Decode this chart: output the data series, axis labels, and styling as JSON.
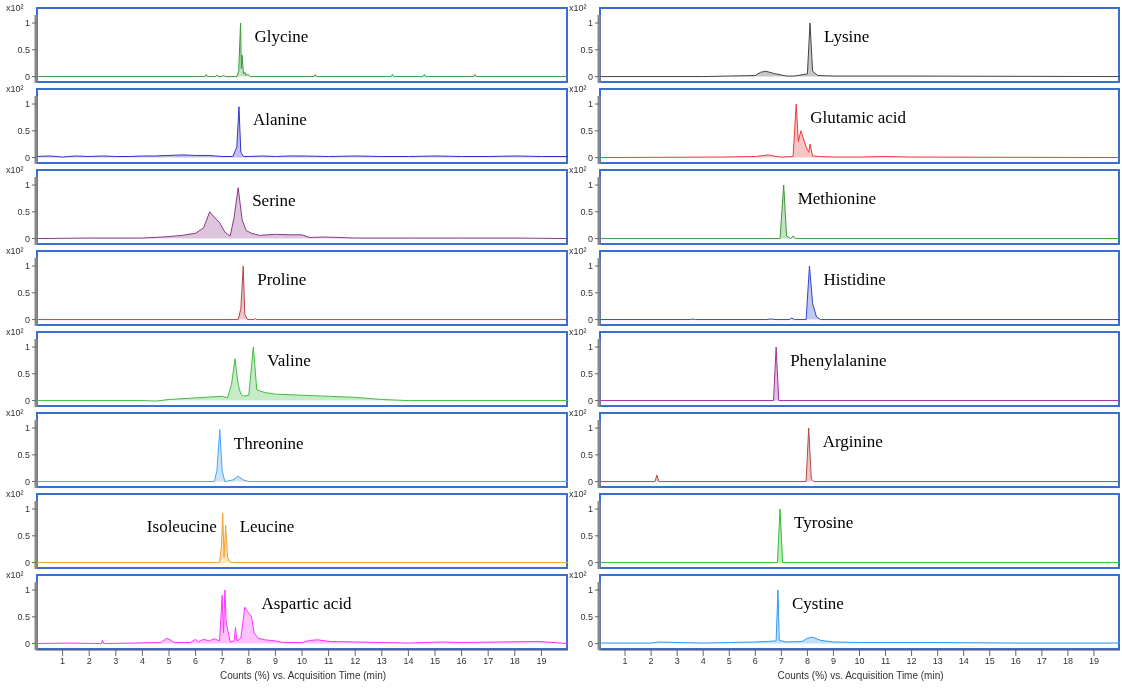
{
  "chart_data": [
    {
      "type": "area",
      "ylabel": "x10²",
      "xlim": [
        0,
        20
      ],
      "ylim": [
        -0.12,
        1.15
      ],
      "yticks": [
        0,
        0.5,
        1
      ],
      "tick_labels": "y",
      "color": "#3a9a3a",
      "annotations": [
        "Glycine"
      ],
      "x": [
        0,
        6.35,
        6.4,
        6.45,
        6.75,
        6.8,
        6.85,
        7.0,
        7.05,
        7.1,
        7.55,
        7.62,
        7.69,
        7.72,
        7.75,
        7.8,
        7.85,
        7.9,
        7.95,
        8.05,
        10.45,
        10.5,
        10.55,
        13.35,
        13.4,
        13.45,
        14.55,
        14.6,
        14.65,
        16.45,
        16.5,
        16.55,
        20
      ],
      "values": [
        0,
        0,
        0.04,
        0,
        0,
        0.03,
        0,
        0,
        0.03,
        0,
        0,
        0.1,
        1.0,
        0.15,
        0.4,
        0.05,
        0.08,
        0.02,
        0.05,
        0,
        0,
        0.04,
        0,
        0,
        0.04,
        0,
        0,
        0.04,
        0,
        0,
        0.04,
        0,
        0
      ]
    },
    {
      "type": "area",
      "ylabel": "x10²",
      "xlim": [
        0,
        20
      ],
      "ylim": [
        -0.12,
        1.15
      ],
      "yticks": [
        0,
        0.5,
        1
      ],
      "tick_labels": "y",
      "color": "#3333cc",
      "annotations": [
        "Alanine"
      ],
      "x": [
        0,
        0.5,
        1,
        1.5,
        2,
        2.5,
        3,
        3.5,
        4,
        4.5,
        5,
        5.5,
        6,
        6.5,
        7,
        7.4,
        7.55,
        7.63,
        7.7,
        7.8,
        8,
        8.5,
        9,
        9.5,
        10,
        11,
        12,
        13,
        14,
        15,
        16,
        17,
        18,
        19,
        20
      ],
      "values": [
        0.02,
        0.03,
        0.01,
        0.03,
        0.02,
        0.03,
        0.02,
        0.02,
        0.03,
        0.03,
        0.04,
        0.05,
        0.04,
        0.04,
        0.02,
        0.02,
        0.2,
        0.95,
        0.1,
        0.02,
        0.02,
        0.03,
        0.02,
        0.03,
        0.03,
        0.02,
        0.03,
        0.02,
        0.02,
        0.03,
        0.02,
        0.02,
        0.03,
        0.02,
        0.02
      ]
    },
    {
      "type": "area",
      "ylabel": "x10²",
      "xlim": [
        0,
        20
      ],
      "ylim": [
        -0.12,
        1.15
      ],
      "yticks": [
        0,
        0.5,
        1
      ],
      "tick_labels": "y",
      "color": "#8b3a8b",
      "annotations": [
        "Serine"
      ],
      "x": [
        0,
        2,
        4,
        4.8,
        5.5,
        6,
        6.3,
        6.53,
        6.7,
        6.9,
        7.1,
        7.3,
        7.45,
        7.6,
        7.75,
        7.9,
        8.1,
        8.4,
        9,
        9.5,
        10,
        10.3,
        10.8,
        12,
        14,
        16,
        18,
        20
      ],
      "values": [
        0,
        0.01,
        0.01,
        0.03,
        0.06,
        0.1,
        0.2,
        0.5,
        0.4,
        0.3,
        0.12,
        0.05,
        0.4,
        0.95,
        0.35,
        0.15,
        0.1,
        0.06,
        0.08,
        0.07,
        0.07,
        0.02,
        0.03,
        0.01,
        0.01,
        0.01,
        0.01,
        0
      ]
    },
    {
      "type": "area",
      "ylabel": "x10²",
      "xlim": [
        0,
        20
      ],
      "ylim": [
        -0.12,
        1.15
      ],
      "yticks": [
        0,
        0.5,
        1
      ],
      "tick_labels": "y",
      "color": "#b54848",
      "annotations": [
        "Proline"
      ],
      "x": [
        0,
        7.6,
        7.7,
        7.79,
        7.85,
        7.95,
        8.2,
        8.25,
        8.3,
        20
      ],
      "values": [
        0,
        0,
        0.2,
        1.0,
        0.1,
        0,
        0,
        0.02,
        0,
        0
      ]
    },
    {
      "type": "area",
      "ylabel": "x10²",
      "xlim": [
        0,
        20
      ],
      "ylim": [
        -0.12,
        1.15
      ],
      "yticks": [
        0,
        0.5,
        1
      ],
      "tick_labels": "y",
      "color": "#44bb44",
      "annotations": [
        "Valine"
      ],
      "x": [
        0,
        2,
        4,
        4.5,
        5,
        6,
        7,
        7.2,
        7.35,
        7.48,
        7.6,
        7.7,
        7.8,
        8.0,
        8.17,
        8.3,
        8.6,
        9,
        10,
        11,
        12,
        13,
        14,
        16,
        20
      ],
      "values": [
        0,
        0,
        0,
        -0.01,
        0.02,
        0.05,
        0.08,
        0.05,
        0.3,
        0.78,
        0.3,
        0.12,
        0.08,
        0.1,
        1.0,
        0.2,
        0.15,
        0.12,
        0.1,
        0.08,
        0.06,
        0.02,
        0,
        0,
        0
      ]
    },
    {
      "type": "area",
      "ylabel": "x10²",
      "xlim": [
        0,
        20
      ],
      "ylim": [
        -0.12,
        1.15
      ],
      "yticks": [
        0,
        0.5,
        1
      ],
      "tick_labels": "y",
      "color": "#4da3f0",
      "annotations": [
        "Threonine"
      ],
      "x": [
        0,
        6.7,
        6.8,
        6.91,
        7.0,
        7.1,
        7.4,
        7.6,
        7.8,
        8.0,
        20
      ],
      "values": [
        0,
        0,
        0.2,
        0.97,
        0.2,
        0,
        0.03,
        0.1,
        0.03,
        0,
        0
      ]
    },
    {
      "type": "area",
      "ylabel": "x10²",
      "xlim": [
        0,
        20
      ],
      "ylim": [
        -0.12,
        1.15
      ],
      "yticks": [
        0,
        0.5,
        1
      ],
      "tick_labels": "y",
      "color": "#f5a030",
      "annotations": [
        "Isoleucine",
        "Leucine"
      ],
      "x": [
        0,
        6.9,
        6.97,
        7.02,
        7.07,
        7.13,
        7.2,
        7.3,
        20
      ],
      "values": [
        0,
        0,
        0.3,
        0.92,
        0.1,
        0.7,
        0.1,
        0,
        0
      ]
    },
    {
      "type": "area",
      "ylabel": "x10²",
      "xlabel": "Counts (%) vs. Acquisition Time (min)",
      "xlim": [
        0,
        20
      ],
      "xticks": [
        1,
        2,
        3,
        4,
        5,
        6,
        7,
        8,
        9,
        10,
        11,
        12,
        13,
        14,
        15,
        16,
        17,
        18,
        19
      ],
      "ylim": [
        -0.12,
        1.15
      ],
      "yticks": [
        0,
        0.5,
        1
      ],
      "color": "#ff33ff",
      "annotations": [
        "Aspartic acid"
      ],
      "x": [
        0,
        1.2,
        2.45,
        2.5,
        2.55,
        4.7,
        4.9,
        5.0,
        5.2,
        5.8,
        6.0,
        6.1,
        6.3,
        6.5,
        6.7,
        6.9,
        7.0,
        7.05,
        7.1,
        7.15,
        7.3,
        7.45,
        7.5,
        7.55,
        7.7,
        7.85,
        7.95,
        8.1,
        8.2,
        8.35,
        8.6,
        9.0,
        9.3,
        10.0,
        10.3,
        10.6,
        11.0,
        12.0,
        13.0,
        14,
        15.3,
        16,
        18.9,
        20
      ],
      "values": [
        0,
        0.01,
        0,
        0.06,
        0,
        0.02,
        0.1,
        0.08,
        0.02,
        0.02,
        0.08,
        0.03,
        0.08,
        0.05,
        0.09,
        0.05,
        0.9,
        0.2,
        1.0,
        0.4,
        0.03,
        0.05,
        0.3,
        0.05,
        0.1,
        0.68,
        0.6,
        0.5,
        0.2,
        0.1,
        0.07,
        0.05,
        0.02,
        0.02,
        0.06,
        0.07,
        0.04,
        0.03,
        0.02,
        0.01,
        0.03,
        0.02,
        0.04,
        0
      ]
    },
    {
      "type": "area",
      "ylabel": "x10²",
      "xlim": [
        0,
        20
      ],
      "ylim": [
        -0.12,
        1.15
      ],
      "yticks": [
        0,
        0.5,
        1
      ],
      "tick_labels": "y",
      "color": "#444444",
      "annotations": [
        "Lysine"
      ],
      "x": [
        0,
        4,
        5,
        6,
        6.2,
        6.4,
        6.7,
        7.0,
        7.2,
        7.5,
        8.0,
        8.1,
        8.2,
        8.4,
        9,
        12,
        20
      ],
      "values": [
        0,
        0,
        0.01,
        0.02,
        0.08,
        0.1,
        0.06,
        0.03,
        0.01,
        0.01,
        0.05,
        1.0,
        0.1,
        0.02,
        0.01,
        0.01,
        0
      ]
    },
    {
      "type": "area",
      "ylabel": "x10²",
      "xlim": [
        0,
        20
      ],
      "ylim": [
        -0.12,
        1.15
      ],
      "yticks": [
        0,
        0.5,
        1
      ],
      "tick_labels": "y",
      "color": "#f03c3c",
      "annotations": [
        "Glutamic acid"
      ],
      "x": [
        0,
        4.7,
        6,
        6.5,
        6.8,
        7.0,
        7.45,
        7.57,
        7.65,
        7.75,
        7.95,
        8.05,
        8.1,
        8.2,
        8.5,
        9,
        10,
        11,
        12,
        20
      ],
      "values": [
        0,
        0.01,
        0.02,
        0.05,
        0.02,
        0.01,
        0.02,
        1.0,
        0.3,
        0.5,
        0.2,
        0.1,
        0.25,
        0.03,
        0.02,
        0.01,
        0.01,
        0.02,
        0.01,
        0
      ]
    },
    {
      "type": "area",
      "ylabel": "x10²",
      "xlim": [
        0,
        20
      ],
      "ylim": [
        -0.12,
        1.15
      ],
      "yticks": [
        0,
        0.5,
        1
      ],
      "tick_labels": "y",
      "color": "#3a9a3a",
      "annotations": [
        "Methionine"
      ],
      "x": [
        0,
        6.95,
        7.09,
        7.2,
        7.35,
        7.46,
        7.55,
        20
      ],
      "values": [
        0,
        0,
        1.0,
        0.05,
        0,
        0.05,
        0,
        0
      ]
    },
    {
      "type": "area",
      "ylabel": "x10²",
      "xlim": [
        0,
        20
      ],
      "ylim": [
        -0.12,
        1.15
      ],
      "yticks": [
        0,
        0.5,
        1
      ],
      "tick_labels": "y",
      "color": "#3344cc",
      "annotations": [
        "Histidine"
      ],
      "x": [
        0,
        3.5,
        3.6,
        3.7,
        6.4,
        6.6,
        6.8,
        7.3,
        7.4,
        7.5,
        7.95,
        8.08,
        8.2,
        8.35,
        8.5,
        20
      ],
      "values": [
        0,
        0,
        0.01,
        0,
        0,
        0.01,
        0,
        0,
        0.03,
        0,
        0,
        1.0,
        0.3,
        0.05,
        0,
        0
      ]
    },
    {
      "type": "area",
      "ylabel": "x10²",
      "xlim": [
        0,
        20
      ],
      "ylim": [
        -0.12,
        1.15
      ],
      "yticks": [
        0,
        0.5,
        1
      ],
      "tick_labels": "y",
      "color": "#a030a0",
      "annotations": [
        "Phenylalanine"
      ],
      "x": [
        0,
        6.7,
        6.8,
        6.9,
        20
      ],
      "values": [
        0,
        0,
        1.0,
        0,
        0
      ]
    },
    {
      "type": "area",
      "ylabel": "x10²",
      "xlim": [
        0,
        20
      ],
      "ylim": [
        -0.12,
        1.15
      ],
      "yticks": [
        0,
        0.5,
        1
      ],
      "tick_labels": "y",
      "color": "#b54848",
      "annotations": [
        "Arginine"
      ],
      "x": [
        0,
        2.15,
        2.22,
        2.3,
        7.95,
        8.05,
        8.15,
        8.25,
        20
      ],
      "values": [
        0,
        0,
        0.12,
        0,
        0,
        1.0,
        0.05,
        0,
        0
      ]
    },
    {
      "type": "area",
      "ylabel": "x10²",
      "xlim": [
        0,
        20
      ],
      "ylim": [
        -0.12,
        1.15
      ],
      "yticks": [
        0,
        0.5,
        1
      ],
      "tick_labels": "y",
      "color": "#33bb33",
      "annotations": [
        "Tyrosine"
      ],
      "x": [
        0,
        6.85,
        6.95,
        7.05,
        20
      ],
      "values": [
        0,
        0,
        1.0,
        0,
        0
      ]
    },
    {
      "type": "area",
      "ylabel": "x10²",
      "xlabel": "Counts (%) vs. Acquisition Time (min)",
      "xlim": [
        0,
        20
      ],
      "xticks": [
        1,
        2,
        3,
        4,
        5,
        6,
        7,
        8,
        9,
        10,
        11,
        12,
        13,
        14,
        15,
        16,
        17,
        18,
        19
      ],
      "ylim": [
        -0.12,
        1.15
      ],
      "yticks": [
        0,
        0.5,
        1
      ],
      "color": "#3399ee",
      "annotations": [
        "Cystine"
      ],
      "x": [
        0,
        1,
        2,
        2.3,
        3,
        4,
        5,
        6,
        6.5,
        6.8,
        6.87,
        6.92,
        7.2,
        7.8,
        8.0,
        8.2,
        8.5,
        9,
        10,
        11,
        13,
        16,
        20
      ],
      "values": [
        0.01,
        0.01,
        0.01,
        0.03,
        0.02,
        0.01,
        0.02,
        0.03,
        0.04,
        0.05,
        1.0,
        0.06,
        0.03,
        0.04,
        0.1,
        0.12,
        0.06,
        0.03,
        0.02,
        0.02,
        0.02,
        0.01,
        0.01
      ]
    }
  ]
}
